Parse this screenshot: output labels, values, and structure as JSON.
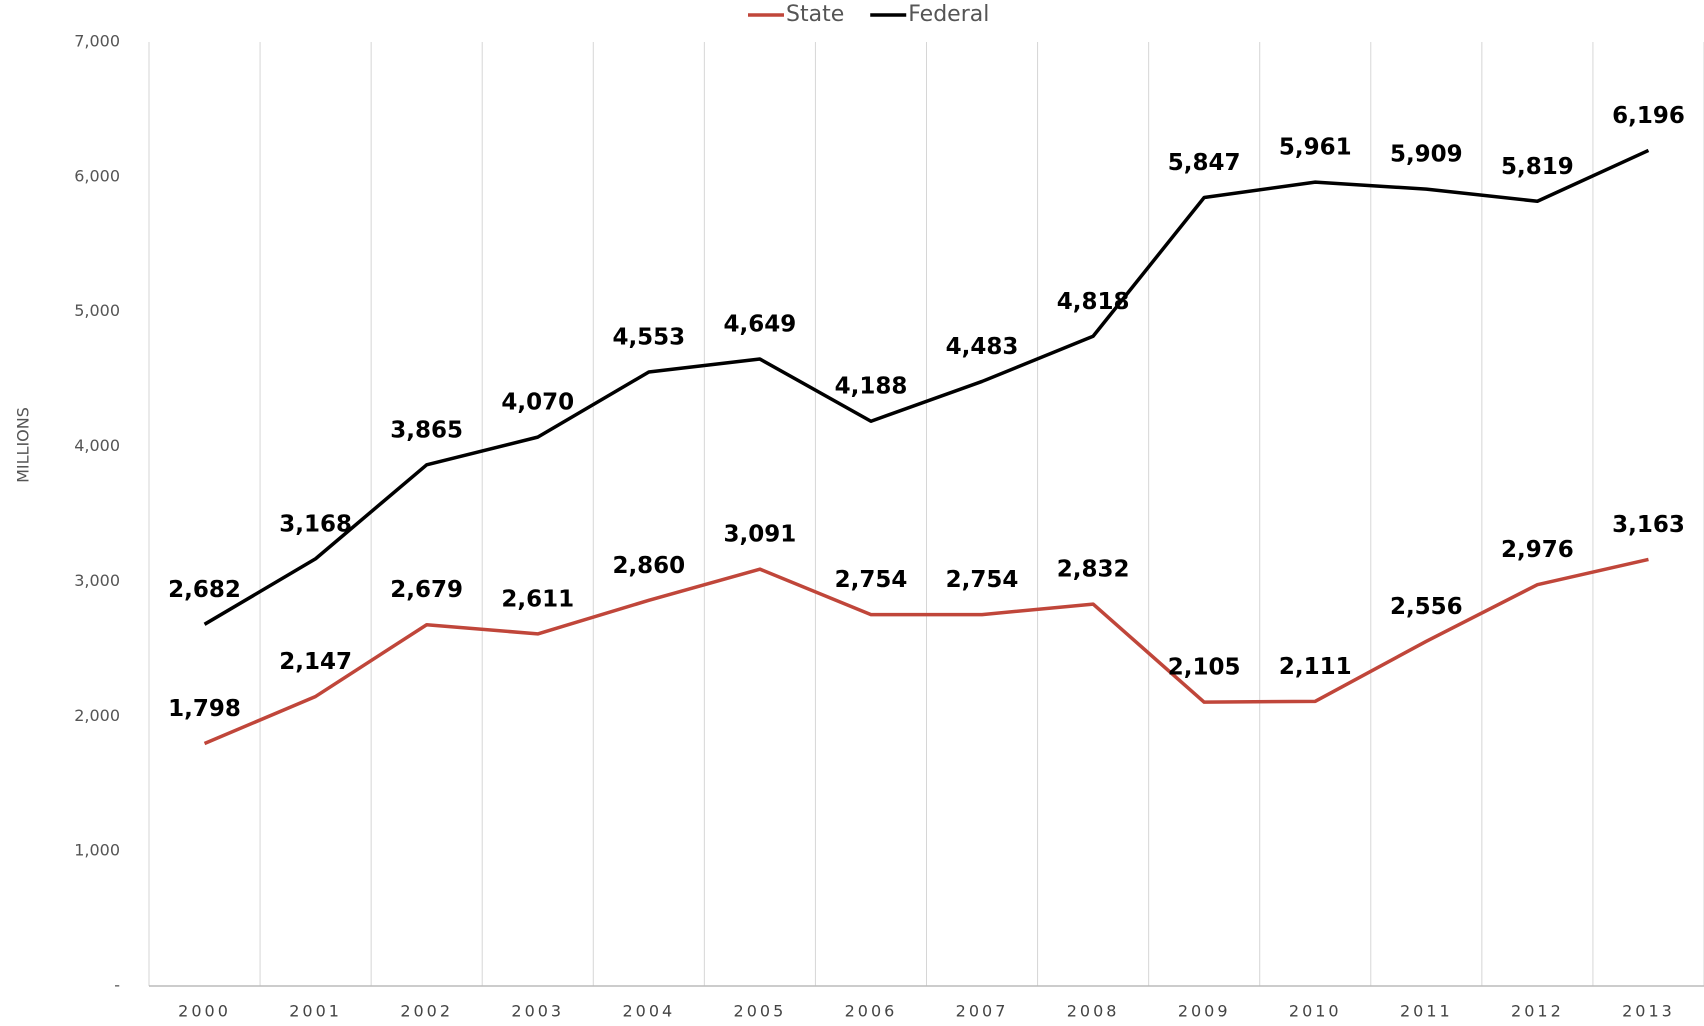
{
  "chart_data": {
    "type": "line",
    "y_axis_label": "MILLIONS",
    "categories": [
      "2000",
      "2001",
      "2002",
      "2003",
      "2004",
      "2005",
      "2006",
      "2007",
      "2008",
      "2009",
      "2010",
      "2011",
      "2012",
      "2013"
    ],
    "series": [
      {
        "name": "State",
        "color": "#c0463a",
        "values": [
          1798,
          2147,
          2679,
          2611,
          2860,
          3091,
          2754,
          2754,
          2832,
          2105,
          2111,
          2556,
          2976,
          3163
        ],
        "value_labels": [
          "1,798",
          "2,147",
          "2,679",
          "2,611",
          "2,860",
          "3,091",
          "2,754",
          "2,754",
          "2,832",
          "2,105",
          "2,111",
          "2,556",
          "2,976",
          "3,163"
        ]
      },
      {
        "name": "Federal",
        "color": "#000000",
        "values": [
          2682,
          3168,
          3865,
          4070,
          4553,
          4649,
          4188,
          4483,
          4818,
          5847,
          5961,
          5909,
          5819,
          6196
        ],
        "value_labels": [
          "2,682",
          "3,168",
          "3,865",
          "4,070",
          "4,553",
          "4,649",
          "4,188",
          "4,483",
          "4,818",
          "5,847",
          "5,961",
          "5,909",
          "5,819",
          "6,196"
        ]
      }
    ],
    "ylim": [
      0,
      7000
    ],
    "yticks": [
      {
        "value": 0,
        "label": "-"
      },
      {
        "value": 1000,
        "label": "1,000"
      },
      {
        "value": 2000,
        "label": "2,000"
      },
      {
        "value": 3000,
        "label": "3,000"
      },
      {
        "value": 4000,
        "label": "4,000"
      },
      {
        "value": 5000,
        "label": "5,000"
      },
      {
        "value": 6000,
        "label": "6,000"
      },
      {
        "value": 7000,
        "label": "7,000"
      }
    ],
    "grid": false,
    "legend": "top"
  }
}
